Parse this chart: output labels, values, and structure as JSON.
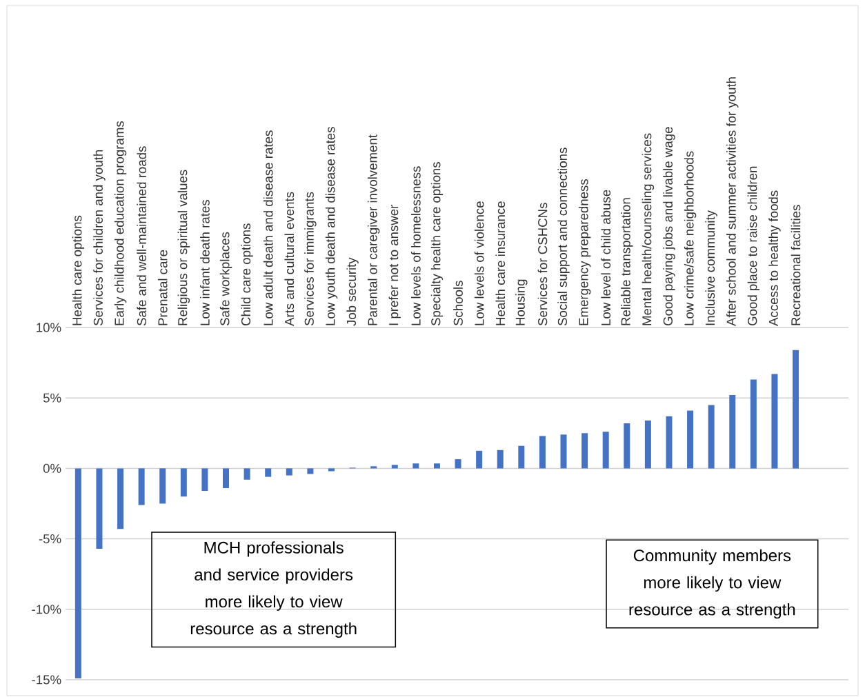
{
  "chart_data": {
    "type": "bar",
    "categories": [
      "Health care options",
      "Services for children and youth",
      "Early childhood education programs",
      "Safe and well-maintained roads",
      "Prenatal care",
      "Religious or spiritual values",
      "Low infant death rates",
      "Safe workplaces",
      "Child care options",
      "Low adult death and disease rates",
      "Arts and cultural events",
      "Services for immigrants",
      "Low youth death and disease rates",
      "Job security",
      "Parental or caregiver involvement",
      "I prefer not to answer",
      "Low levels of homelessness",
      "Specialty health care options",
      "Schools",
      "Low levels of violence",
      "Health care insurance",
      "Housing",
      "Services for CSHCNs",
      "Social support and connections",
      "Emergency preparedness",
      "Low level of child abuse",
      "Reliable transportation",
      "Mental health/counseling services",
      "Good paying jobs and livable wage",
      "Low crime/safe neighborhoods",
      "Inclusive community",
      "After school and summer activities for youth",
      "Good place to raise children",
      "Access to healthy foods",
      "Recreational facilities"
    ],
    "values": [
      -14.9,
      -5.7,
      -4.3,
      -2.6,
      -2.5,
      -2.0,
      -1.6,
      -1.4,
      -0.8,
      -0.6,
      -0.5,
      -0.4,
      -0.2,
      0.05,
      0.15,
      0.25,
      0.35,
      0.35,
      0.65,
      1.25,
      1.3,
      1.6,
      2.3,
      2.4,
      2.5,
      2.6,
      3.2,
      3.4,
      3.7,
      4.1,
      4.5,
      5.2,
      6.3,
      6.7,
      8.4
    ],
    "color": "#4472c4",
    "ylim": [
      -15,
      10
    ],
    "yticks": [
      {
        "value": -15,
        "label": "-15%"
      },
      {
        "value": -10,
        "label": "-10%"
      },
      {
        "value": -5,
        "label": "-5%"
      },
      {
        "value": 0,
        "label": "0%"
      },
      {
        "value": 5,
        "label": "5%"
      },
      {
        "value": 10,
        "label": "10%"
      }
    ],
    "grid": "y",
    "annotations": [
      "MCH professionals and service providers more likely to view resource as a strength",
      "Community members more likely to view resource as a strength"
    ]
  }
}
